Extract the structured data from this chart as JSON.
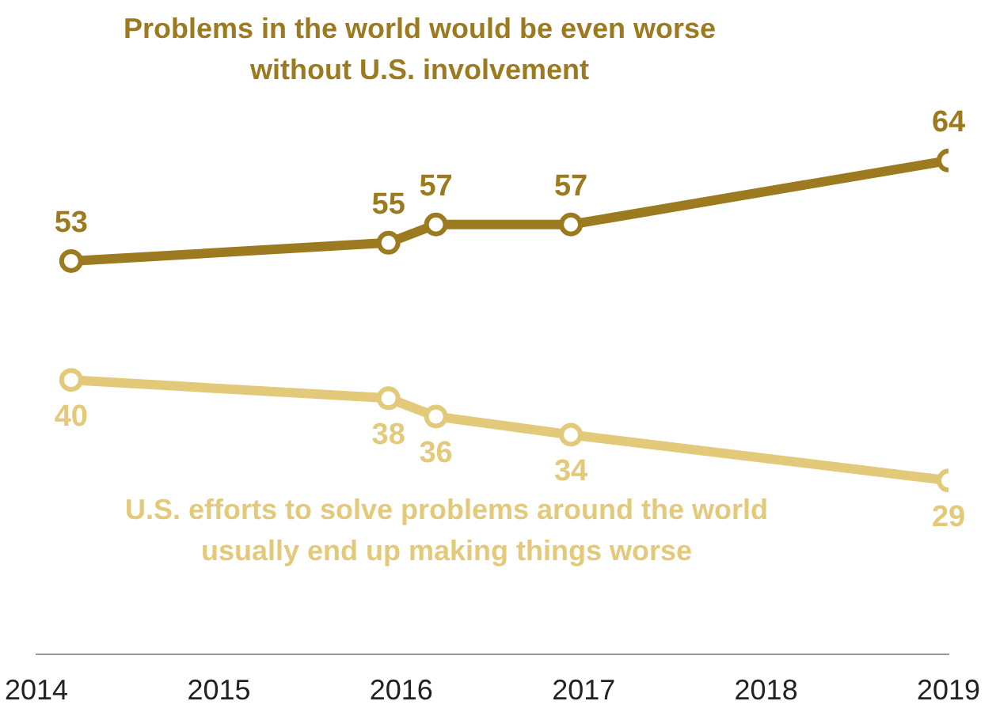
{
  "chart_data": {
    "type": "line",
    "x": [
      2014.19,
      2015.93,
      2016.19,
      2016.93,
      2019.0
    ],
    "series": [
      {
        "name": "Problems in the world would be even worse without U.S. involvement",
        "color": "#9c7a1f",
        "values": [
          53,
          55,
          57,
          57,
          64
        ]
      },
      {
        "name": "U.S. efforts to solve problems around the world usually end up making things worse",
        "color": "#e3c97a",
        "values": [
          40,
          38,
          36,
          34,
          29
        ]
      }
    ],
    "xlim": [
      2014,
      2019
    ],
    "xticks": [
      2014,
      2015,
      2016,
      2017,
      2018,
      2019
    ],
    "tick_labels": "x",
    "grid": false,
    "legend": false,
    "marker": "circle",
    "line_style": "solid",
    "data_labels": true
  }
}
